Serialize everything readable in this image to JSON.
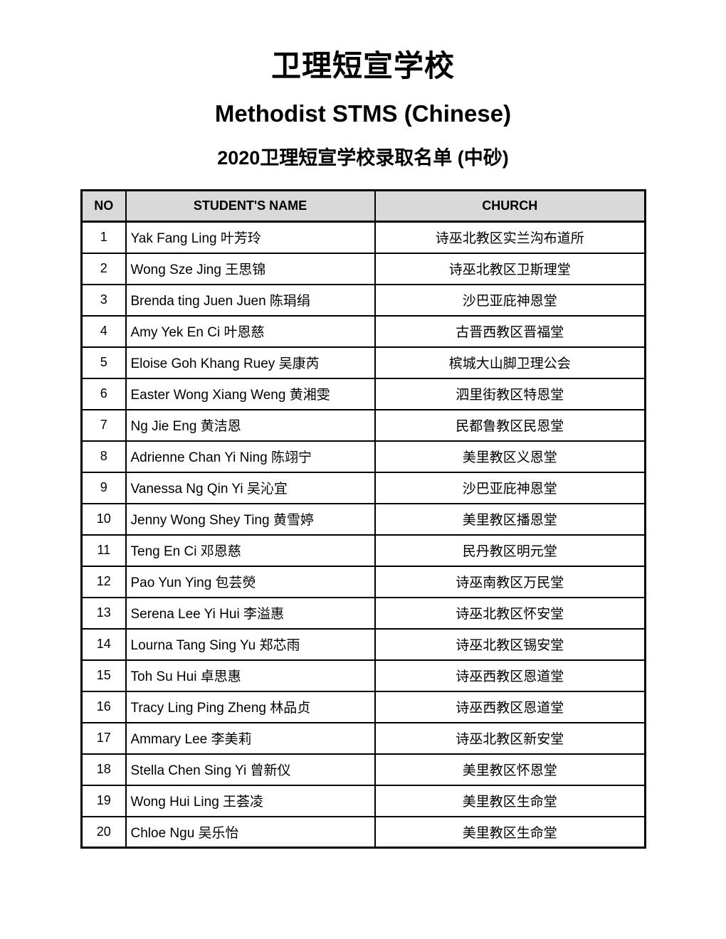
{
  "page": {
    "title_cn": "卫理短宣学校",
    "title_en": "Methodist STMS (Chinese)",
    "subtitle": "2020卫理短宣学校录取名单 (中砂)"
  },
  "colors": {
    "header_bg": "#d9d9d9",
    "border": "#000000",
    "page_bg": "#ffffff"
  },
  "table": {
    "columns": [
      "NO",
      "STUDENT'S NAME",
      "CHURCH"
    ],
    "rows": [
      {
        "no": "1",
        "name": "Yak Fang Ling 叶芳玲",
        "church": "诗巫北教区实兰沟布道所"
      },
      {
        "no": "2",
        "name": "Wong Sze Jing 王思锦",
        "church": "诗巫北教区卫斯理堂"
      },
      {
        "no": "3",
        "name": "Brenda ting Juen Juen 陈琄绢",
        "church": "沙巴亚庇神恩堂"
      },
      {
        "no": "4",
        "name": "Amy Yek En Ci 叶恩慈",
        "church": "古晋西教区晋福堂"
      },
      {
        "no": "5",
        "name": "Eloise Goh Khang Ruey 吴康芮",
        "church": "槟城大山脚卫理公会"
      },
      {
        "no": "6",
        "name": "Easter Wong Xiang Weng 黄湘雯",
        "church": "泗里街教区特恩堂"
      },
      {
        "no": "7",
        "name": "Ng Jie Eng 黄洁恩",
        "church": "民都鲁教区民恩堂"
      },
      {
        "no": "8",
        "name": "Adrienne Chan Yi Ning 陈翊宁",
        "church": "美里教区义恩堂"
      },
      {
        "no": "9",
        "name": "Vanessa Ng Qin Yi 吴沁宜",
        "church": "沙巴亚庇神恩堂"
      },
      {
        "no": "10",
        "name": "Jenny Wong Shey Ting 黄雪婷",
        "church": "美里教区播恩堂"
      },
      {
        "no": "11",
        "name": "Teng En Ci 邓恩慈",
        "church": "民丹教区明元堂"
      },
      {
        "no": "12",
        "name": "Pao Yun Ying 包芸熒",
        "church": "诗巫南教区万民堂"
      },
      {
        "no": "13",
        "name": "Serena Lee Yi Hui 李溢惠",
        "church": "诗巫北教区怀安堂"
      },
      {
        "no": "14",
        "name": "Lourna Tang Sing Yu 郑芯雨",
        "church": "诗巫北教区锡安堂"
      },
      {
        "no": "15",
        "name": "Toh Su Hui 卓思惠",
        "church": "诗巫西教区恩道堂"
      },
      {
        "no": "16",
        "name": "Tracy Ling Ping Zheng 林品贞",
        "church": "诗巫西教区恩道堂"
      },
      {
        "no": "17",
        "name": "Ammary Lee 李美莉",
        "church": "诗巫北教区新安堂"
      },
      {
        "no": "18",
        "name": "Stella Chen Sing Yi 曾新仪",
        "church": "美里教区怀恩堂"
      },
      {
        "no": "19",
        "name": "Wong Hui Ling 王荟凌",
        "church": "美里教区生命堂"
      },
      {
        "no": "20",
        "name": "Chloe Ngu 吴乐怡",
        "church": "美里教区生命堂"
      }
    ]
  }
}
